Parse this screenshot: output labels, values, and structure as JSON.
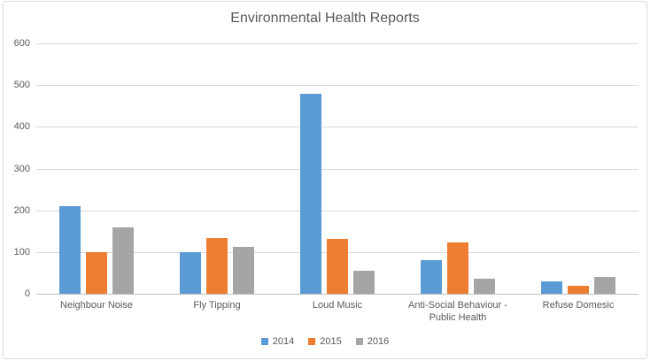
{
  "window": {
    "background": "#ffffff",
    "frame_border_color": "#d9d9d9"
  },
  "chart_data": {
    "type": "bar",
    "title": "Environmental Health Reports",
    "categories": [
      "Neighbour Noise",
      "Fly Tipping",
      "Loud Music",
      "Anti-Social Behaviour - Public Health",
      "Refuse Domesic"
    ],
    "series": [
      {
        "name": "2014",
        "color": "#5b9bd5",
        "values": [
          210,
          100,
          480,
          80,
          30
        ]
      },
      {
        "name": "2015",
        "color": "#ed7d31",
        "values": [
          100,
          133,
          131,
          122,
          20
        ]
      },
      {
        "name": "2016",
        "color": "#a5a5a5",
        "values": [
          160,
          113,
          56,
          37,
          40
        ]
      }
    ],
    "xlabel": "",
    "ylabel": "",
    "ylim": [
      0,
      600
    ],
    "yticks": [
      0,
      100,
      200,
      300,
      400,
      500,
      600
    ],
    "grid": "horizontal",
    "legend_position": "bottom",
    "styles": {
      "gridline_color": "#d9d9d9",
      "axis_line_color": "#bfbfbf",
      "text_color": "#595959",
      "title_color": "#595959"
    }
  }
}
